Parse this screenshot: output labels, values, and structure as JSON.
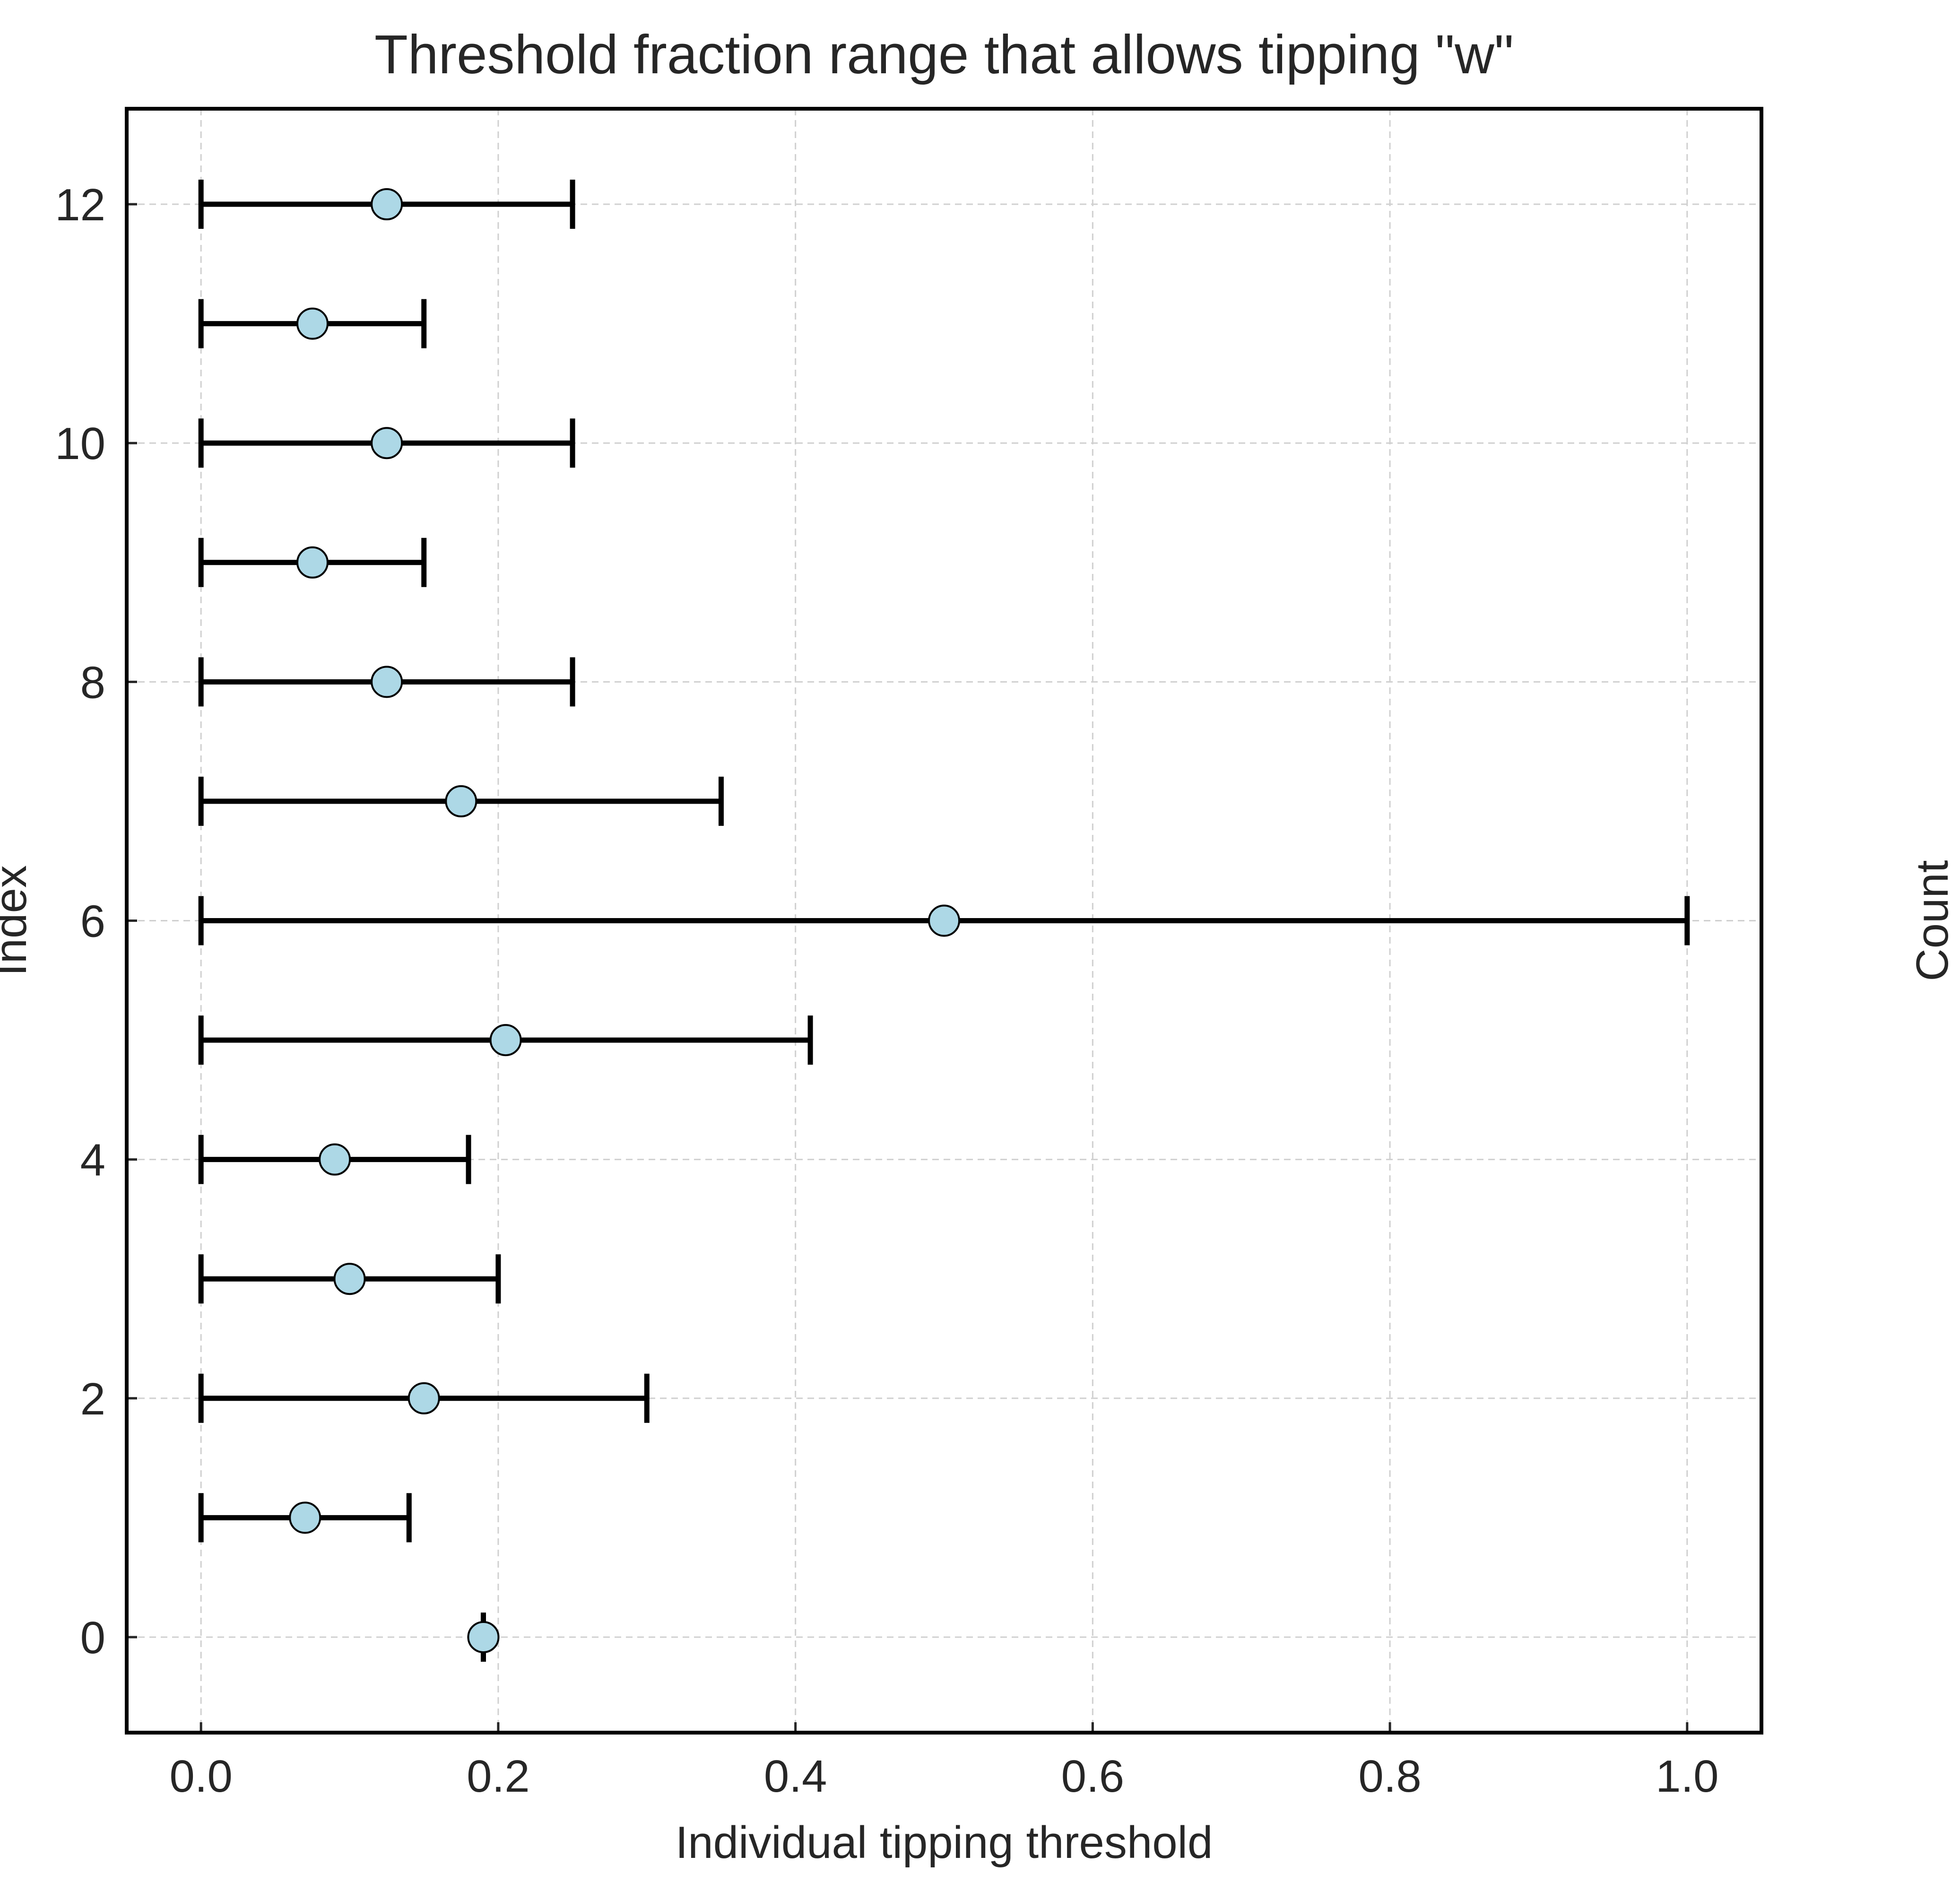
{
  "chart_data": {
    "type": "scatter",
    "title": "Threshold fraction range that allows tipping  \"w\"",
    "xlabel": "Individual tipping threshold",
    "ylabel": "Index",
    "right_ylabel": "Count",
    "xlim": [
      -0.05,
      1.05
    ],
    "ylim": [
      -0.8,
      12.8
    ],
    "x_ticks": [
      "0.0",
      "0.2",
      "0.4",
      "0.6",
      "0.8",
      "1.0"
    ],
    "y_ticks": [
      "0",
      "2",
      "4",
      "6",
      "8",
      "10",
      "12"
    ],
    "grid": true,
    "point_color": "#add8e6",
    "errorbar_color": "#000000",
    "points": [
      {
        "index": 0,
        "value": 0.19,
        "low": 0.19,
        "high": 0.19
      },
      {
        "index": 1,
        "value": 0.07,
        "low": 0.0,
        "high": 0.14
      },
      {
        "index": 2,
        "value": 0.15,
        "low": 0.0,
        "high": 0.3
      },
      {
        "index": 3,
        "value": 0.1,
        "low": 0.0,
        "high": 0.2
      },
      {
        "index": 4,
        "value": 0.09,
        "low": 0.0,
        "high": 0.18
      },
      {
        "index": 5,
        "value": 0.205,
        "low": 0.0,
        "high": 0.41
      },
      {
        "index": 6,
        "value": 0.5,
        "low": 0.0,
        "high": 1.0
      },
      {
        "index": 7,
        "value": 0.175,
        "low": 0.0,
        "high": 0.35
      },
      {
        "index": 8,
        "value": 0.125,
        "low": 0.0,
        "high": 0.25
      },
      {
        "index": 9,
        "value": 0.075,
        "low": 0.0,
        "high": 0.15
      },
      {
        "index": 10,
        "value": 0.125,
        "low": 0.0,
        "high": 0.25
      },
      {
        "index": 11,
        "value": 0.075,
        "low": 0.0,
        "high": 0.15
      },
      {
        "index": 12,
        "value": 0.125,
        "low": 0.0,
        "high": 0.25
      }
    ]
  }
}
